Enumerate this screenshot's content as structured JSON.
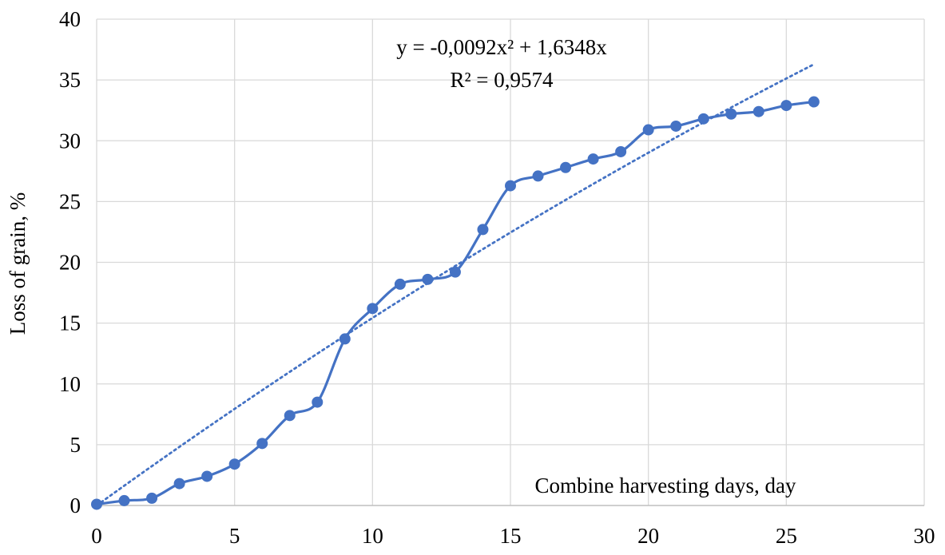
{
  "chart_data": {
    "type": "line",
    "xlabel": "Combine harvesting days, day",
    "ylabel": "Loss of grain, %",
    "xlim": [
      0,
      30
    ],
    "ylim": [
      0,
      40
    ],
    "x_ticks": [
      "0",
      "5",
      "10",
      "15",
      "20",
      "25",
      "30"
    ],
    "y_ticks": [
      "0",
      "5",
      "10",
      "15",
      "20",
      "25",
      "30",
      "35",
      "40"
    ],
    "grid": true,
    "legend": "none",
    "series": [
      {
        "color": "#4472c4",
        "style": "smooth-line-with-markers",
        "x": [
          0,
          1,
          2,
          3,
          4,
          5,
          6,
          7,
          8,
          9,
          10,
          11,
          12,
          13,
          14,
          15,
          16,
          17,
          18,
          19,
          20,
          21,
          22,
          23,
          24,
          25,
          26
        ],
        "y": [
          0.1,
          0.4,
          0.6,
          1.8,
          2.4,
          3.4,
          5.1,
          7.4,
          8.5,
          13.7,
          16.2,
          18.2,
          18.6,
          19.2,
          22.7,
          26.3,
          27.1,
          27.8,
          28.5,
          29.1,
          30.9,
          31.2,
          31.8,
          32.2,
          32.4,
          32.9,
          33.2
        ]
      }
    ],
    "trendline": {
      "type": "polynomial",
      "color": "#4472c4",
      "style": "dotted",
      "a": -0.0092,
      "b": 1.6348,
      "x_range": [
        0,
        26
      ]
    },
    "annotations": {
      "equation": "y = -0,0092x² + 1,6348x",
      "r_squared": "R² = 0,9574"
    }
  }
}
